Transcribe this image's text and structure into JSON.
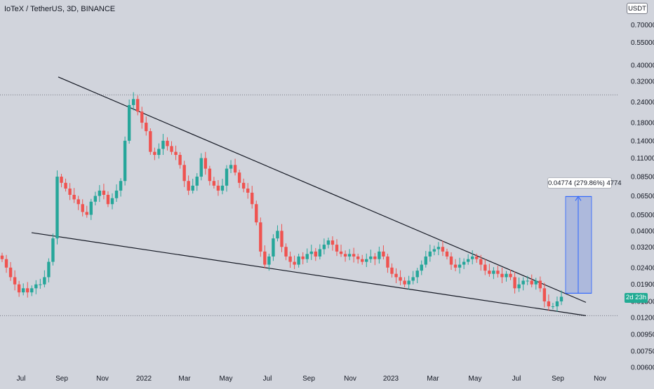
{
  "header": {
    "title": "IoTeX / TetherUS, 3D, BINANCE",
    "unit_label": "USDT"
  },
  "price_badge": {
    "label": "2d 23h",
    "color": "#22ab94"
  },
  "measure": {
    "label": "0.04774 (279.86%) 4774",
    "fill": "#8fa3dd",
    "line_color": "#2962ff"
  },
  "colors": {
    "background": "#d1d4dc",
    "up_candle": "#26a69a",
    "down_candle": "#ef5350",
    "trendline": "#131722",
    "dotted_line": "#787b86"
  },
  "chart_data": {
    "type": "candlestick",
    "title": "IoTeX / TetherUS, 3D, BINANCE",
    "y_scale": "log",
    "ylim": [
      0.006,
      0.8
    ],
    "y_ticks": [
      "0.70000",
      "0.55000",
      "0.40000",
      "0.32000",
      "0.24000",
      "0.18000",
      "0.14000",
      "0.11000",
      "0.08500",
      "0.06500",
      "0.05000",
      "0.04000",
      "0.03200",
      "0.02400",
      "0.01900",
      "0.01500",
      "0.01200",
      "0.00950",
      "0.00750",
      "0.00600"
    ],
    "x_ticks": [
      "Jul",
      "Sep",
      "Nov",
      "2022",
      "Mar",
      "May",
      "Jul",
      "Sep",
      "Nov",
      "2023",
      "Mar",
      "May",
      "Jul",
      "Sep",
      "Nov"
    ],
    "candles_close_approx": [
      0.027,
      0.024,
      0.021,
      0.019,
      0.017,
      0.018,
      0.017,
      0.018,
      0.019,
      0.019,
      0.021,
      0.026,
      0.036,
      0.085,
      0.078,
      0.072,
      0.066,
      0.062,
      0.058,
      0.052,
      0.05,
      0.06,
      0.065,
      0.07,
      0.066,
      0.058,
      0.063,
      0.07,
      0.08,
      0.14,
      0.23,
      0.25,
      0.21,
      0.18,
      0.16,
      0.12,
      0.115,
      0.125,
      0.14,
      0.13,
      0.12,
      0.115,
      0.1,
      0.08,
      0.07,
      0.075,
      0.085,
      0.11,
      0.095,
      0.08,
      0.075,
      0.07,
      0.075,
      0.095,
      0.1,
      0.09,
      0.078,
      0.072,
      0.068,
      0.058,
      0.045,
      0.03,
      0.025,
      0.028,
      0.036,
      0.04,
      0.032,
      0.028,
      0.026,
      0.025,
      0.028,
      0.027,
      0.029,
      0.03,
      0.028,
      0.031,
      0.033,
      0.035,
      0.033,
      0.03,
      0.029,
      0.028,
      0.029,
      0.028,
      0.027,
      0.026,
      0.027,
      0.028,
      0.027,
      0.03,
      0.028,
      0.024,
      0.022,
      0.021,
      0.02,
      0.019,
      0.02,
      0.021,
      0.023,
      0.025,
      0.028,
      0.03,
      0.031,
      0.032,
      0.03,
      0.028,
      0.025,
      0.024,
      0.025,
      0.026,
      0.027,
      0.028,
      0.027,
      0.025,
      0.023,
      0.022,
      0.023,
      0.022,
      0.021,
      0.022,
      0.021,
      0.018,
      0.019,
      0.02,
      0.02,
      0.019,
      0.02,
      0.018,
      0.015,
      0.014,
      0.014,
      0.015,
      0.016
    ],
    "annotations": [
      {
        "type": "horizontal-dotted",
        "value": 0.265
      },
      {
        "type": "horizontal-dotted",
        "value": 0.0123
      },
      {
        "type": "upper-trendline",
        "from": [
          "2021-08-15",
          0.34
        ],
        "to": [
          "2023-10-25",
          0.0148
        ]
      },
      {
        "type": "lower-trendline",
        "from": [
          "2021-08-10",
          0.039
        ],
        "to": [
          "2023-10-25",
          0.0123
        ]
      },
      {
        "type": "price-range",
        "from_value": 0.0168,
        "to_value": 0.0645,
        "label": "0.04774 (279.86%) 4774"
      }
    ]
  }
}
